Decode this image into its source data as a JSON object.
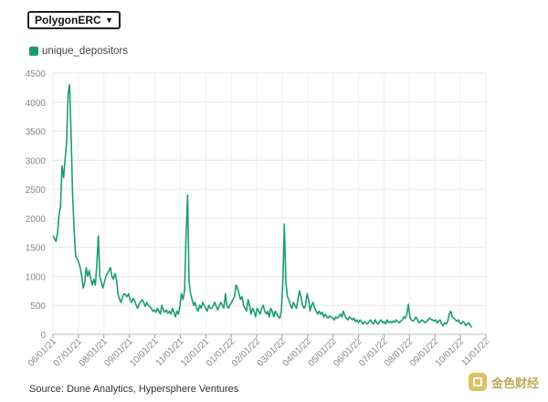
{
  "selector": {
    "value": "PolygonERC"
  },
  "legend": {
    "label": "unique_depositors",
    "color": "#1a9e6e"
  },
  "source": "Source: Dune Analytics, Hypersphere Ventures",
  "watermark": {
    "text": "金色财经"
  },
  "chart_data": {
    "type": "line",
    "title": "",
    "xlabel": "",
    "ylabel": "",
    "ylim": [
      0,
      4500
    ],
    "yticks": [
      0,
      500,
      1000,
      1500,
      2000,
      2500,
      3000,
      3500,
      4000,
      4500
    ],
    "xticks": [
      "06/01/21",
      "07/01/21",
      "08/01/21",
      "09/01/21",
      "10/01/21",
      "11/01/21",
      "12/01/21",
      "01/01/22",
      "02/01/22",
      "03/01/22",
      "04/01/22",
      "05/01/22",
      "06/01/22",
      "07/01/22",
      "08/01/22",
      "09/01/22",
      "10/01/22",
      "11/01/22"
    ],
    "grid": true,
    "series": [
      {
        "name": "unique_depositors",
        "color": "#1a9e6e",
        "points": [
          [
            0,
            1700
          ],
          [
            1,
            1650
          ],
          [
            2,
            1600
          ],
          [
            3,
            1750
          ],
          [
            4,
            2050
          ],
          [
            5,
            2200
          ],
          [
            6,
            2900
          ],
          [
            7,
            2700
          ],
          [
            8,
            3000
          ],
          [
            9,
            3300
          ],
          [
            10,
            4150
          ],
          [
            11,
            4300
          ],
          [
            12,
            3400
          ],
          [
            13,
            2400
          ],
          [
            14,
            1800
          ],
          [
            15,
            1350
          ],
          [
            16,
            1300
          ],
          [
            17,
            1250
          ],
          [
            18,
            1150
          ],
          [
            19,
            1000
          ],
          [
            20,
            800
          ],
          [
            21,
            900
          ],
          [
            22,
            1150
          ],
          [
            23,
            1000
          ],
          [
            24,
            1100
          ],
          [
            25,
            950
          ],
          [
            26,
            850
          ],
          [
            27,
            950
          ],
          [
            28,
            850
          ],
          [
            29,
            1200
          ],
          [
            30,
            1700
          ],
          [
            31,
            1000
          ],
          [
            32,
            900
          ],
          [
            33,
            800
          ],
          [
            34,
            900
          ],
          [
            35,
            1000
          ],
          [
            36,
            1050
          ],
          [
            37,
            1100
          ],
          [
            38,
            1150
          ],
          [
            39,
            1000
          ],
          [
            40,
            950
          ],
          [
            41,
            1050
          ],
          [
            42,
            950
          ],
          [
            43,
            700
          ],
          [
            44,
            600
          ],
          [
            45,
            550
          ],
          [
            46,
            650
          ],
          [
            47,
            700
          ],
          [
            48,
            680
          ],
          [
            49,
            650
          ],
          [
            50,
            700
          ],
          [
            51,
            600
          ],
          [
            52,
            550
          ],
          [
            53,
            620
          ],
          [
            54,
            580
          ],
          [
            55,
            500
          ],
          [
            56,
            450
          ],
          [
            57,
            520
          ],
          [
            58,
            560
          ],
          [
            59,
            600
          ],
          [
            60,
            550
          ],
          [
            61,
            480
          ],
          [
            62,
            550
          ],
          [
            63,
            500
          ],
          [
            64,
            480
          ],
          [
            65,
            450
          ],
          [
            66,
            400
          ],
          [
            67,
            420
          ],
          [
            68,
            380
          ],
          [
            69,
            450
          ],
          [
            70,
            400
          ],
          [
            71,
            350
          ],
          [
            72,
            500
          ],
          [
            73,
            420
          ],
          [
            74,
            380
          ],
          [
            75,
            420
          ],
          [
            76,
            360
          ],
          [
            77,
            400
          ],
          [
            78,
            350
          ],
          [
            79,
            450
          ],
          [
            80,
            380
          ],
          [
            81,
            300
          ],
          [
            82,
            400
          ],
          [
            83,
            350
          ],
          [
            84,
            500
          ],
          [
            85,
            700
          ],
          [
            86,
            600
          ],
          [
            87,
            750
          ],
          [
            88,
            1700
          ],
          [
            89,
            2400
          ],
          [
            90,
            900
          ],
          [
            91,
            700
          ],
          [
            92,
            600
          ],
          [
            93,
            500
          ],
          [
            94,
            550
          ],
          [
            95,
            450
          ],
          [
            96,
            400
          ],
          [
            97,
            500
          ],
          [
            98,
            450
          ],
          [
            99,
            550
          ],
          [
            100,
            500
          ],
          [
            101,
            450
          ],
          [
            102,
            400
          ],
          [
            103,
            500
          ],
          [
            104,
            450
          ],
          [
            105,
            450
          ],
          [
            106,
            500
          ],
          [
            107,
            550
          ],
          [
            108,
            480
          ],
          [
            109,
            420
          ],
          [
            110,
            500
          ],
          [
            111,
            550
          ],
          [
            112,
            500
          ],
          [
            113,
            450
          ],
          [
            114,
            700
          ],
          [
            115,
            500
          ],
          [
            116,
            450
          ],
          [
            117,
            500
          ],
          [
            118,
            550
          ],
          [
            119,
            600
          ],
          [
            120,
            650
          ],
          [
            121,
            850
          ],
          [
            122,
            800
          ],
          [
            123,
            700
          ],
          [
            124,
            600
          ],
          [
            125,
            650
          ],
          [
            126,
            500
          ],
          [
            127,
            450
          ],
          [
            128,
            400
          ],
          [
            129,
            600
          ],
          [
            130,
            500
          ],
          [
            131,
            350
          ],
          [
            132,
            450
          ],
          [
            133,
            400
          ],
          [
            134,
            300
          ],
          [
            135,
            450
          ],
          [
            136,
            400
          ],
          [
            137,
            350
          ],
          [
            138,
            450
          ],
          [
            139,
            500
          ],
          [
            140,
            400
          ],
          [
            141,
            350
          ],
          [
            142,
            400
          ],
          [
            143,
            300
          ],
          [
            144,
            450
          ],
          [
            145,
            400
          ],
          [
            146,
            300
          ],
          [
            147,
            400
          ],
          [
            148,
            350
          ],
          [
            149,
            300
          ],
          [
            150,
            280
          ],
          [
            151,
            400
          ],
          [
            152,
            900
          ],
          [
            153,
            1900
          ],
          [
            154,
            900
          ],
          [
            155,
            650
          ],
          [
            156,
            600
          ],
          [
            157,
            500
          ],
          [
            158,
            450
          ],
          [
            159,
            550
          ],
          [
            160,
            500
          ],
          [
            161,
            450
          ],
          [
            162,
            600
          ],
          [
            163,
            750
          ],
          [
            164,
            650
          ],
          [
            165,
            500
          ],
          [
            166,
            450
          ],
          [
            167,
            500
          ],
          [
            168,
            700
          ],
          [
            169,
            600
          ],
          [
            170,
            400
          ],
          [
            171,
            500
          ],
          [
            172,
            550
          ],
          [
            173,
            450
          ],
          [
            174,
            400
          ],
          [
            175,
            350
          ],
          [
            176,
            400
          ],
          [
            177,
            350
          ],
          [
            178,
            380
          ],
          [
            179,
            300
          ],
          [
            180,
            350
          ],
          [
            181,
            300
          ],
          [
            182,
            280
          ],
          [
            183,
            320
          ],
          [
            184,
            300
          ],
          [
            185,
            280
          ],
          [
            186,
            250
          ],
          [
            187,
            300
          ],
          [
            188,
            280
          ],
          [
            189,
            300
          ],
          [
            190,
            350
          ],
          [
            191,
            300
          ],
          [
            192,
            400
          ],
          [
            193,
            320
          ],
          [
            194,
            280
          ],
          [
            195,
            250
          ],
          [
            196,
            300
          ],
          [
            197,
            280
          ],
          [
            198,
            250
          ],
          [
            199,
            280
          ],
          [
            200,
            220
          ],
          [
            201,
            250
          ],
          [
            202,
            200
          ],
          [
            203,
            250
          ],
          [
            204,
            220
          ],
          [
            205,
            180
          ],
          [
            206,
            220
          ],
          [
            207,
            200
          ],
          [
            208,
            180
          ],
          [
            209,
            220
          ],
          [
            210,
            250
          ],
          [
            211,
            200
          ],
          [
            212,
            180
          ],
          [
            213,
            250
          ],
          [
            214,
            200
          ],
          [
            215,
            180
          ],
          [
            216,
            220
          ],
          [
            217,
            250
          ],
          [
            218,
            200
          ],
          [
            219,
            220
          ],
          [
            220,
            180
          ],
          [
            221,
            250
          ],
          [
            222,
            200
          ],
          [
            223,
            220
          ],
          [
            224,
            200
          ],
          [
            225,
            230
          ],
          [
            226,
            210
          ],
          [
            227,
            250
          ],
          [
            228,
            220
          ],
          [
            229,
            200
          ],
          [
            230,
            230
          ],
          [
            231,
            250
          ],
          [
            232,
            300
          ],
          [
            233,
            280
          ],
          [
            234,
            350
          ],
          [
            235,
            520
          ],
          [
            236,
            300
          ],
          [
            237,
            250
          ],
          [
            238,
            230
          ],
          [
            239,
            250
          ],
          [
            240,
            300
          ],
          [
            241,
            250
          ],
          [
            242,
            200
          ],
          [
            243,
            220
          ],
          [
            244,
            250
          ],
          [
            245,
            230
          ],
          [
            246,
            200
          ],
          [
            247,
            220
          ],
          [
            248,
            250
          ],
          [
            249,
            280
          ],
          [
            250,
            260
          ],
          [
            251,
            250
          ],
          [
            252,
            230
          ],
          [
            253,
            250
          ],
          [
            254,
            200
          ],
          [
            255,
            230
          ],
          [
            256,
            250
          ],
          [
            257,
            180
          ],
          [
            258,
            150
          ],
          [
            259,
            200
          ],
          [
            260,
            180
          ],
          [
            261,
            220
          ],
          [
            262,
            350
          ],
          [
            263,
            400
          ],
          [
            264,
            300
          ],
          [
            265,
            280
          ],
          [
            266,
            250
          ],
          [
            267,
            230
          ],
          [
            268,
            250
          ],
          [
            269,
            200
          ],
          [
            270,
            180
          ],
          [
            271,
            220
          ],
          [
            272,
            200
          ],
          [
            273,
            150
          ],
          [
            274,
            180
          ],
          [
            275,
            200
          ],
          [
            276,
            150
          ],
          [
            277,
            120
          ]
        ]
      }
    ]
  }
}
